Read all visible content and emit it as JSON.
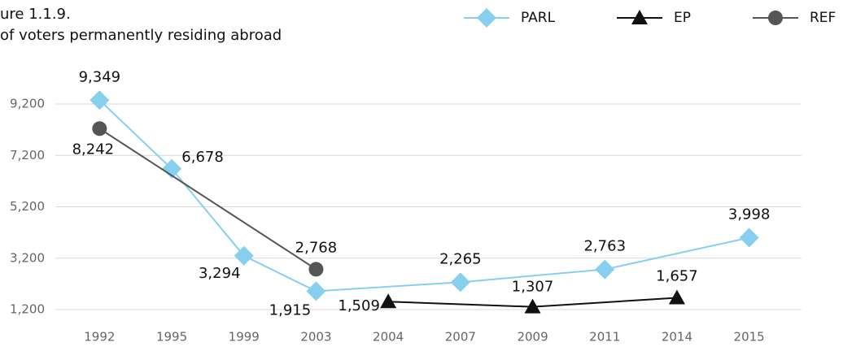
{
  "chart_data": {
    "type": "line",
    "title_lines": [
      "ure 1.1.9.",
      "of voters permanently residing abroad"
    ],
    "categories": [
      "1992",
      "1995",
      "1999",
      "2003",
      "2004",
      "2007",
      "2009",
      "2011",
      "2014",
      "2015"
    ],
    "series": [
      {
        "name": "PARL",
        "color": "#87cfef",
        "marker": "diamond",
        "values": [
          9349,
          6678,
          3294,
          1915,
          null,
          2265,
          null,
          2763,
          null,
          3998
        ],
        "value_labels": [
          "9,349",
          "6,678",
          "3,294",
          "1,915",
          null,
          "2,265",
          null,
          "2,763",
          null,
          "3,998"
        ]
      },
      {
        "name": "EP",
        "color": "#111111",
        "marker": "triangle",
        "values": [
          null,
          null,
          null,
          null,
          1509,
          null,
          1307,
          null,
          1657,
          null
        ],
        "value_labels": [
          null,
          null,
          null,
          null,
          "1,509",
          null,
          "1,307",
          null,
          "1,657",
          null
        ]
      },
      {
        "name": "REF",
        "color": "#555555",
        "marker": "circle",
        "values": [
          8242,
          null,
          null,
          2768,
          null,
          null,
          null,
          null,
          null,
          null
        ],
        "value_labels": [
          "8,242",
          null,
          null,
          "2,768",
          null,
          null,
          null,
          null,
          null,
          null
        ]
      }
    ],
    "connect_gaps": true,
    "ylim": [
      1200,
      9200
    ],
    "yticks": [
      {
        "value": 1200,
        "label": "1,200"
      },
      {
        "value": 3200,
        "label": "3,200"
      },
      {
        "value": 5200,
        "label": "5,200"
      },
      {
        "value": 7200,
        "label": "7,200"
      },
      {
        "value": 9200,
        "label": "9,200"
      }
    ],
    "grid": true,
    "legend": "top-right"
  }
}
